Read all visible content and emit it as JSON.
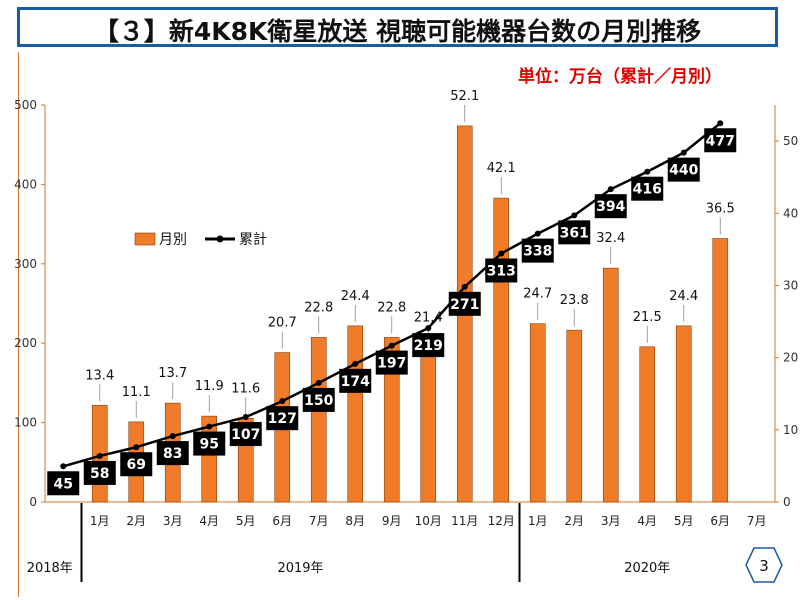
{
  "title": "【３】新4K8K衛星放送 視聴可能機器台数の月別推移",
  "unit_note": "単位：万台（累計／月別）",
  "page_number": "3",
  "colors": {
    "bar": "#f07b28",
    "bar_border": "#8a3d08",
    "line": "#000000",
    "label_box": "#000000",
    "label_text": "#ffffff",
    "title_border": "#1a5ba6",
    "unit_note": "#e00000",
    "axis": "#d9772e"
  },
  "years": [
    {
      "label": "2018年"
    },
    {
      "label": "2019年"
    },
    {
      "label": "2020年"
    }
  ],
  "chart_data": {
    "type": "bar",
    "categories": [
      "",
      "1月",
      "2月",
      "3月",
      "4月",
      "5月",
      "6月",
      "7月",
      "8月",
      "9月",
      "10月",
      "11月",
      "12月",
      "1月",
      "2月",
      "3月",
      "4月",
      "5月",
      "6月",
      "7月"
    ],
    "series": [
      {
        "name": "月別",
        "type": "bar",
        "axis": "right",
        "values": [
          null,
          13.4,
          11.1,
          13.7,
          11.9,
          11.6,
          20.7,
          22.8,
          24.4,
          22.8,
          21.4,
          52.1,
          42.1,
          24.7,
          23.8,
          32.4,
          21.5,
          24.4,
          36.5,
          null
        ]
      },
      {
        "name": "累計",
        "type": "line",
        "axis": "left",
        "values": [
          45,
          58,
          69,
          83,
          95,
          107,
          127,
          150,
          174,
          197,
          219,
          271,
          313,
          338,
          361,
          394,
          416,
          440,
          477,
          null
        ]
      }
    ],
    "y_left": {
      "ticks": [
        "0",
        "100",
        "200",
        "300",
        "400",
        "500"
      ],
      "lim": [
        0,
        500
      ]
    },
    "y_right": {
      "ticks": [
        "0",
        "10",
        "20",
        "30",
        "40",
        "50"
      ],
      "lim": [
        0,
        55
      ]
    },
    "legend": "center-left",
    "grid": false
  }
}
